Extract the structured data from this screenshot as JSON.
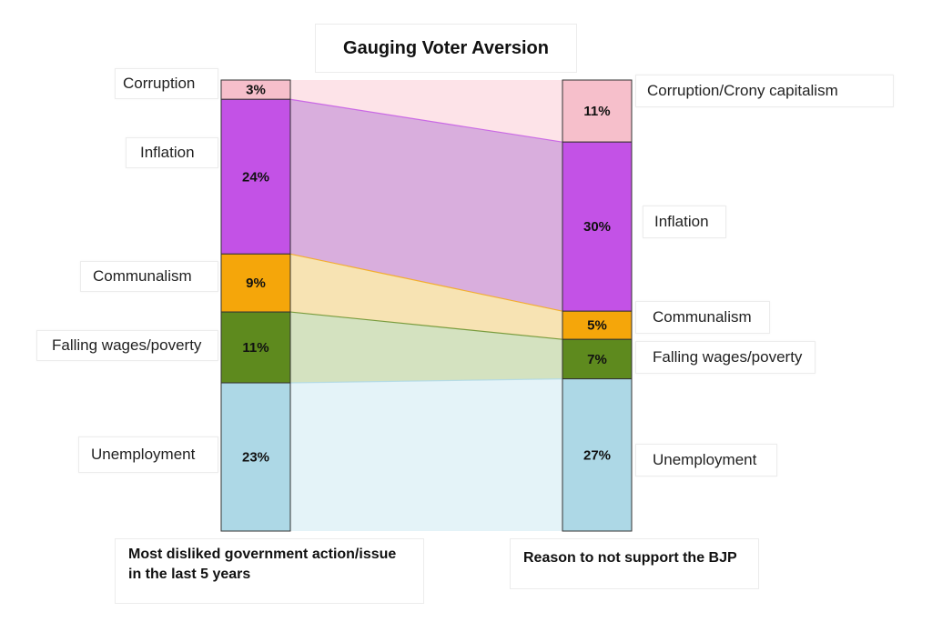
{
  "title": "Gauging Voter Aversion",
  "chart_data": {
    "type": "sankey",
    "title": "Gauging Voter Aversion",
    "left_axis_label": "Most disliked government action/issue in the last 5 years",
    "right_axis_label": "Reason to not support the BJP",
    "categories_left": [
      "Corruption",
      "Inflation",
      "Communalism",
      "Falling wages/poverty",
      "Unemployment"
    ],
    "categories_right": [
      "Corruption/Crony capitalism",
      "Inflation",
      "Communalism",
      "Falling wages/poverty",
      "Unemployment"
    ],
    "series": [
      {
        "name": "Most disliked government action/issue in the last 5 years",
        "values": [
          3,
          24,
          9,
          11,
          23
        ],
        "labels": [
          "3%",
          "24%",
          "9%",
          "11%",
          "23%"
        ]
      },
      {
        "name": "Reason to not support the BJP",
        "values": [
          11,
          30,
          5,
          7,
          27
        ],
        "labels": [
          "11%",
          "30%",
          "5%",
          "7%",
          "27%"
        ]
      }
    ],
    "colors": {
      "corruption": "#f6bfcb",
      "inflation": "#c352e6",
      "communalism": "#f5a60a",
      "poverty": "#5e8a1e",
      "unemployment": "#add8e6"
    },
    "band_colors": {
      "corruption": "#fde3e8",
      "inflation": "#d9aedd",
      "communalism": "#f7e3b3",
      "poverty": "#d4e2c0",
      "unemployment": "#e4f3f8"
    }
  }
}
